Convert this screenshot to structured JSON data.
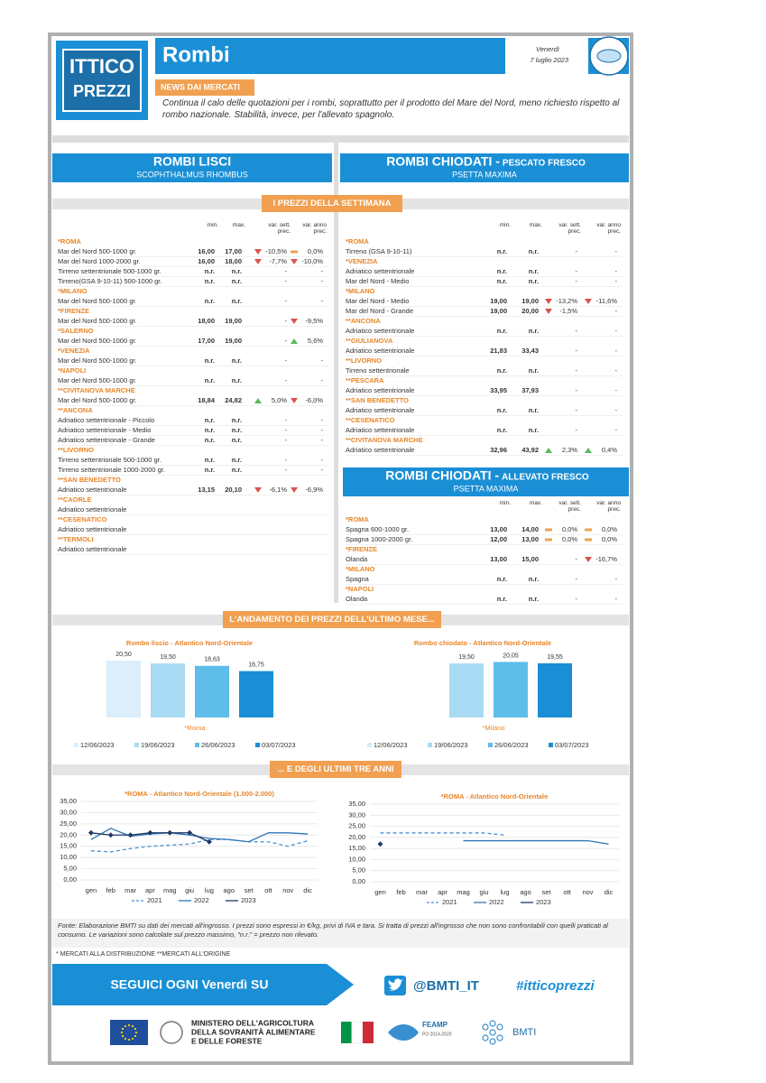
{
  "header": {
    "logo": [
      "ITTICO",
      "PREZZI"
    ],
    "title": "Rombi",
    "day": "Venerdì",
    "date": "7 luglio 2023",
    "news_label": "NEWS DAI MERCATI",
    "news": "Continua il calo delle quotazioni per i rombi, soprattutto per il prodotto del Mare del Nord, meno richiesto rispetto al rombo nazionale. Stabilità, invece, per l'allevato spagnolo."
  },
  "sections": {
    "banner_week": "I PREZZI DELLA SETTIMANA",
    "banner_month": "L'ANDAMENTO DEI PREZZI DELL'ULTIMO MESE...",
    "banner_years": "... E DEGLI ULTIMI TRE ANNI"
  },
  "table_lisci": {
    "title": "ROMBI LISCI",
    "subtitle": "SCOPHTHALMUS RHOMBUS",
    "columns": [
      "min.",
      "max.",
      "var. sett. prec.",
      "var. anno prec."
    ],
    "groups": [
      {
        "market": "*ROMA",
        "rows": [
          [
            "Mar del Nord 500-1000 gr.",
            "16,00",
            "17,00",
            "-10,5%",
            "0,0%"
          ],
          [
            "Mar del Nord 1000-2000 gr.",
            "16,00",
            "18,00",
            "-7,7%",
            "-10,0%"
          ],
          [
            "Tirreno settentrionale 500-1000 gr.",
            "n.r.",
            "n.r.",
            "-",
            "-"
          ],
          [
            "Tirreno(GSA 9-10-11) 500-1000 gr.",
            "n.r.",
            "n.r.",
            "-",
            "-"
          ]
        ]
      },
      {
        "market": "*MILANO",
        "rows": [
          [
            "Mar del Nord 500-1000 gr.",
            "n.r.",
            "n.r.",
            "-",
            "-"
          ]
        ]
      },
      {
        "market": "*FIRENZE",
        "rows": [
          [
            "Mar del Nord 500-1000 gr.",
            "18,00",
            "19,00",
            "-",
            "-9,5%"
          ]
        ]
      },
      {
        "market": "*SALERNO",
        "rows": [
          [
            "Mar del Nord 500-1000 gr.",
            "17,00",
            "19,00",
            "-",
            "5,6%"
          ]
        ]
      },
      {
        "market": "*VENEZIA",
        "rows": [
          [
            "Mar del Nord 500-1000 gr.",
            "n.r.",
            "n.r.",
            "-",
            "-"
          ]
        ]
      },
      {
        "market": "*NAPOLI",
        "rows": [
          [
            "Mar del Nord 500-1000 gr.",
            "n.r.",
            "n.r.",
            "-",
            "-"
          ]
        ]
      },
      {
        "market": "**CIVITANOVA MARCHE",
        "rows": [
          [
            "Mar del Nord 500-1000 gr.",
            "18,84",
            "24,82",
            "5,0%",
            "-6,0%"
          ]
        ]
      },
      {
        "market": "**ANCONA",
        "rows": [
          [
            "Adriatico settentrionale - Piccolo",
            "n.r.",
            "n.r.",
            "-",
            "-"
          ],
          [
            "Adriatico settentrionale - Medio",
            "n.r.",
            "n.r.",
            "-",
            "-"
          ],
          [
            "Adriatico settentrionale - Grande",
            "n.r.",
            "n.r.",
            "-",
            "-"
          ]
        ]
      },
      {
        "market": "**LIVORNO",
        "rows": [
          [
            "Tirreno settentrionale 500-1000 gr.",
            "n.r.",
            "n.r.",
            "-",
            "-"
          ],
          [
            "Tirreno settentrionale 1000-2000 gr.",
            "n.r.",
            "n.r.",
            "-",
            "-"
          ]
        ]
      },
      {
        "market": "**SAN BENEDETTO",
        "rows": [
          [
            "Adriatico settentrionale",
            "13,15",
            "20,10",
            "-6,1%",
            "-6,9%"
          ]
        ]
      },
      {
        "market": "**CAORLE",
        "rows": [
          [
            "Adriatico settentrionale"
          ]
        ]
      },
      {
        "market": "**CESENATICO",
        "rows": [
          [
            "Adriatico settentrionale"
          ]
        ]
      },
      {
        "market": "**TERMOLI",
        "rows": [
          [
            "Adriatico settentrionale"
          ]
        ]
      }
    ]
  },
  "table_pescato": {
    "title": "ROMBI CHIODATI - ",
    "title_detail": "PESCATO FRESCO",
    "subtitle": "PSETTA MAXIMA",
    "columns": [
      "min.",
      "max.",
      "var. sett. prec.",
      "var. anno prec."
    ],
    "groups": [
      {
        "market": "*ROMA",
        "rows": [
          [
            "Tirreno (GSA 9-10-11)",
            "n.r.",
            "n.r.",
            "-",
            "-"
          ]
        ]
      },
      {
        "market": "*VENEZIA",
        "rows": [
          [
            "Adriatico settentrionale",
            "n.r.",
            "n.r.",
            "-",
            "-"
          ],
          [
            "Mar del Nord - Medio",
            "n.r.",
            "n.r.",
            "-",
            "-"
          ]
        ]
      },
      {
        "market": "*MILANO",
        "rows": [
          [
            "Mar del Nord - Medio",
            "19,00",
            "19,00",
            "-13,2%",
            "-11,6%"
          ],
          [
            "Mar del Nord - Grande",
            "19,00",
            "20,00",
            "-1,5%",
            "-"
          ]
        ]
      },
      {
        "market": "**ANCONA",
        "rows": [
          [
            "Adriatico settentrionale",
            "n.r.",
            "n.r.",
            "-",
            "-"
          ]
        ]
      },
      {
        "market": "**GIULIANOVA",
        "rows": [
          [
            "Adriatico settentrionale",
            "21,83",
            "33,43",
            "-",
            "-"
          ]
        ]
      },
      {
        "market": "**LIVORNO",
        "rows": [
          [
            "Tirreno settentrionale",
            "n.r.",
            "n.r.",
            "-",
            "-"
          ]
        ]
      },
      {
        "market": "**PESCARA",
        "rows": [
          [
            "Adriatico settentrionale",
            "33,95",
            "37,93",
            "-",
            "-"
          ]
        ]
      },
      {
        "market": "**SAN BENEDETTO",
        "rows": [
          [
            "Adriatico settentrionale",
            "n.r.",
            "n.r.",
            "-",
            "-"
          ]
        ]
      },
      {
        "market": "**CESENATICO",
        "rows": [
          [
            "Adriatico settentrionale",
            "n.r.",
            "n.r.",
            "-",
            "-"
          ]
        ]
      },
      {
        "market": "**CIVITANOVA MARCHE",
        "rows": [
          [
            "Adriatico settentrionale",
            "32,96",
            "43,92",
            "2,3%",
            "0,4%"
          ]
        ]
      }
    ]
  },
  "table_allevato": {
    "title": "ROMBI CHIODATI - ",
    "title_detail": "ALLEVATO FRESCO",
    "subtitle": "PSETTA MAXIMA",
    "columns": [
      "min.",
      "max.",
      "var. sett. prec.",
      "var. anno prec."
    ],
    "groups": [
      {
        "market": "*ROMA",
        "rows": [
          [
            "Spagna 600-1000 gr.",
            "13,00",
            "14,00",
            "0,0%",
            "0,0%"
          ],
          [
            "Spagna 1000-2000 gr.",
            "12,00",
            "13,00",
            "0,0%",
            "0,0%"
          ]
        ]
      },
      {
        "market": "*FIRENZE",
        "rows": [
          [
            "Olanda",
            "13,00",
            "15,00",
            "-",
            "-16,7%"
          ]
        ]
      },
      {
        "market": "*MILANO",
        "rows": [
          [
            "Spagna",
            "n.r.",
            "n.r.",
            "-",
            "-"
          ]
        ]
      },
      {
        "market": "*NAPOLI",
        "rows": [
          [
            "Olanda",
            "n.r.",
            "n.r.",
            "-",
            "-"
          ]
        ]
      }
    ]
  },
  "chart_data": [
    {
      "type": "bar",
      "title": "Rombo liscio - Atlantico Nord-Orientale",
      "categories": [
        "*Roma"
      ],
      "series": [
        {
          "name": "12/06/2023",
          "color": "#dbeef9",
          "values": [
            20.5
          ],
          "value_labels": [
            "20,50"
          ]
        },
        {
          "name": "19/06/2023",
          "color": "#a9daf3",
          "values": [
            19.5
          ],
          "value_labels": [
            "19,50"
          ]
        },
        {
          "name": "26/06/2023",
          "color": "#5ebde9",
          "values": [
            18.63
          ],
          "value_labels": [
            "18,63"
          ]
        },
        {
          "name": "03/07/2023",
          "color": "#1a8fd6",
          "values": [
            16.75
          ],
          "value_labels": [
            "16,75"
          ]
        }
      ]
    },
    {
      "type": "bar",
      "title": "Rombo chiodato - Atlantico Nord-Orientale",
      "categories": [
        "*Milano"
      ],
      "series": [
        {
          "name": "12/06/2023",
          "color": "#dbeef9",
          "values": [
            null
          ],
          "value_labels": [
            null
          ]
        },
        {
          "name": "19/06/2023",
          "color": "#a9daf3",
          "values": [
            19.5
          ],
          "value_labels": [
            "19,50"
          ]
        },
        {
          "name": "26/06/2023",
          "color": "#5ebde9",
          "values": [
            20.05
          ],
          "value_labels": [
            "20,05"
          ]
        },
        {
          "name": "03/07/2023",
          "color": "#1a8fd6",
          "values": [
            19.55
          ],
          "value_labels": [
            "19,55"
          ]
        }
      ]
    },
    {
      "type": "line",
      "title": "*ROMA - Atlantico Nord-Orientale (1.000-2.000)",
      "categories": [
        "gen",
        "feb",
        "mar",
        "apr",
        "mag",
        "giu",
        "lug",
        "ago",
        "set",
        "ott",
        "nov",
        "dic"
      ],
      "ylim": [
        0,
        35
      ],
      "yticks": [
        {
          "value": 35,
          "label": "35,00"
        },
        {
          "value": 30,
          "label": "30,00"
        },
        {
          "value": 25,
          "label": "25,00"
        },
        {
          "value": 20,
          "label": "20,00"
        },
        {
          "value": 15,
          "label": "15,00"
        },
        {
          "value": 10,
          "label": "10,00"
        },
        {
          "value": 5,
          "label": "5,00"
        },
        {
          "value": 0,
          "label": "0,00"
        }
      ],
      "grid": true,
      "series": [
        {
          "name": "2021",
          "color": "#4a8fd0",
          "line_style": "dashed",
          "values": [
            13,
            12.5,
            14,
            15,
            15.5,
            16,
            18,
            18,
            17,
            17,
            15,
            17.5
          ]
        },
        {
          "name": "2022",
          "color": "#2e75b6",
          "line_style": "solid",
          "values": [
            18,
            23,
            19.5,
            20.5,
            21,
            20,
            18.5,
            18,
            17,
            21,
            21,
            20.5
          ]
        },
        {
          "name": "2023",
          "color": "#1f3864",
          "line_style": "solid",
          "marker": "diamond",
          "values": [
            21,
            20,
            20,
            21,
            21,
            21,
            17,
            null,
            null,
            null,
            null,
            null
          ]
        }
      ]
    },
    {
      "type": "line",
      "title": "*ROMA - Atlantico Nord-Orientale",
      "categories": [
        "gen",
        "feb",
        "mar",
        "apr",
        "mag",
        "giu",
        "lug",
        "ago",
        "set",
        "ott",
        "nov",
        "dic"
      ],
      "ylim": [
        0,
        35
      ],
      "yticks": [
        {
          "value": 35,
          "label": "35,00"
        },
        {
          "value": 30,
          "label": "30,00"
        },
        {
          "value": 25,
          "label": "25,00"
        },
        {
          "value": 20,
          "label": "20,00"
        },
        {
          "value": 15,
          "label": "15,00"
        },
        {
          "value": 10,
          "label": "10,00"
        },
        {
          "value": 5,
          "label": "5,00"
        },
        {
          "value": 0,
          "label": "0,00"
        }
      ],
      "grid": true,
      "series": [
        {
          "name": "2021",
          "color": "#4a8fd0",
          "line_style": "dashed",
          "values": [
            22,
            22,
            22,
            22,
            22,
            22,
            21,
            null,
            null,
            null,
            null,
            null
          ]
        },
        {
          "name": "2022",
          "color": "#2e75b6",
          "line_style": "solid",
          "values": [
            null,
            null,
            null,
            null,
            18.5,
            18.5,
            18.5,
            18.5,
            18.5,
            18.5,
            18.5,
            17
          ]
        },
        {
          "name": "2023",
          "color": "#1f3864",
          "line_style": "solid",
          "marker": "diamond",
          "values": [
            17,
            null,
            null,
            null,
            null,
            null,
            null,
            null,
            null,
            null,
            null,
            null
          ]
        }
      ]
    }
  ],
  "footer": {
    "source": "Fonte: Elaborazione BMTI su dati dei mercati all'ingrosso. I prezzi sono espressi in €/kg, privi di IVA e tara. Si tratta di prezzi all'ingrosso che non sono confrontabili con quelli praticati al consumo. Le variazioni sono calcolate sul prezzo massimo, \"n.r.\" = prezzo non rilevato.",
    "market_legend": "* MERCATI ALLA DISTRIBUZIONE **MERCATI ALL'ORIGINE",
    "follow": "SEGUICI OGNI Venerdì SU",
    "twitter": "@BMTI_IT",
    "hashtag": "#itticoprezzi",
    "ministry": [
      "MINISTERO DELL'AGRICOLTURA",
      "DELLA SOVRANITÀ ALIMENTARE",
      "E DELLE FORESTE"
    ],
    "feamp": "FEAMP",
    "feamp_sub": "PO 2014-2020",
    "bmti": "BMTI"
  }
}
